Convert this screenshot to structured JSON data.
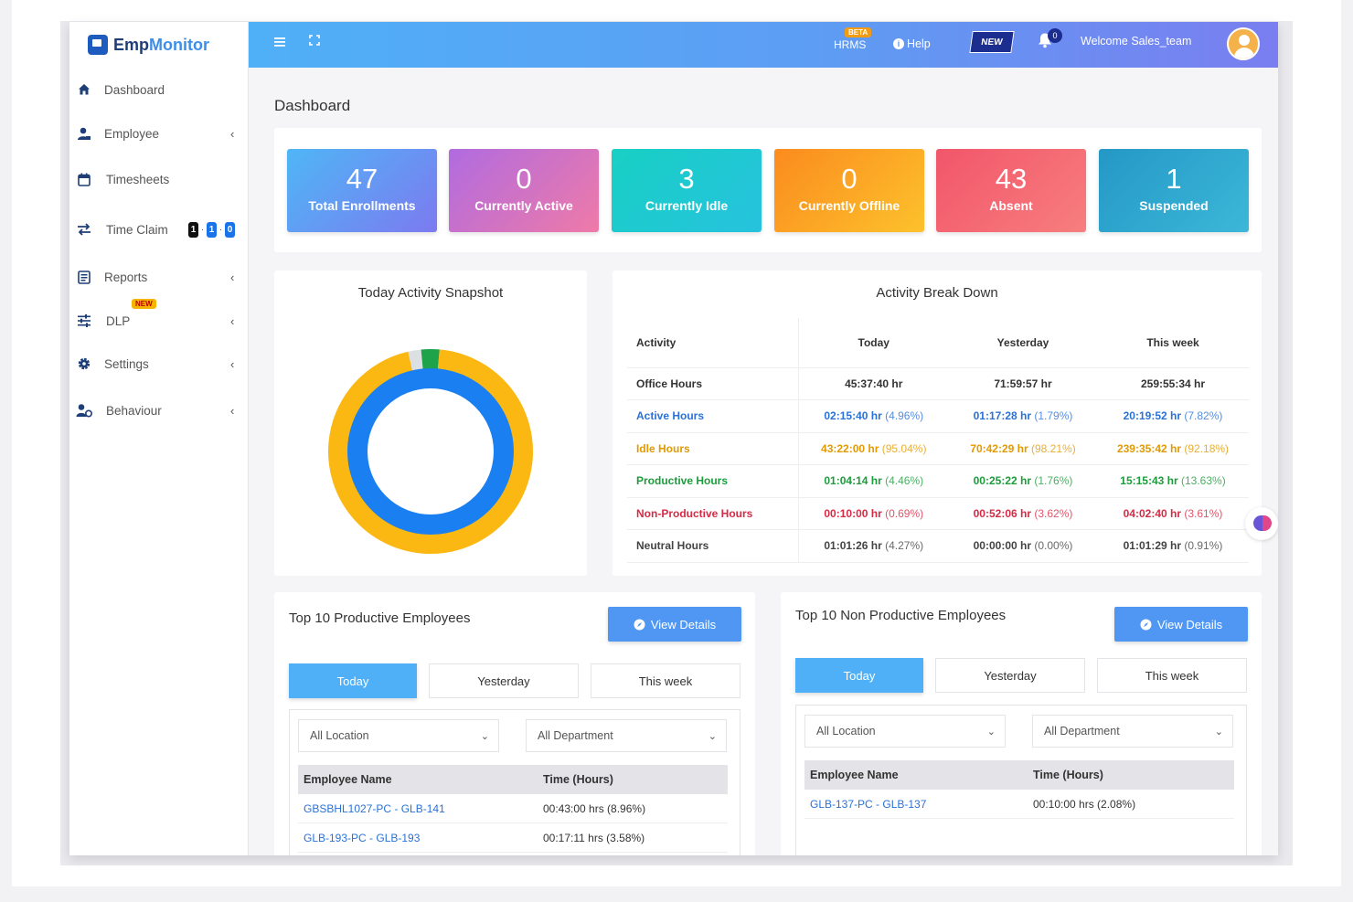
{
  "brand": {
    "name_a": "Emp",
    "name_b": "Monitor"
  },
  "sidebar": {
    "items": [
      {
        "label": "Dashboard",
        "icon": "home-icon",
        "chevron": ""
      },
      {
        "label": "Employee",
        "icon": "user-icon",
        "chevron": "‹"
      },
      {
        "label": "Timesheets",
        "icon": "calendar-icon",
        "chevron": ""
      },
      {
        "label": "Time Claim",
        "icon": "swap-icon",
        "chevron": ""
      },
      {
        "label": "Reports",
        "icon": "report-icon",
        "chevron": "‹"
      },
      {
        "label": "DLP",
        "icon": "sliders-icon",
        "chevron": "‹"
      },
      {
        "label": "Settings",
        "icon": "gear-icon",
        "chevron": "‹"
      },
      {
        "label": "Behaviour",
        "icon": "users-icon",
        "chevron": "‹"
      }
    ],
    "dlp_new_tag": "NEW",
    "time_claim_badges": [
      "1",
      "1",
      "0"
    ]
  },
  "topbar": {
    "hrms": "HRMS",
    "beta": "BETA",
    "help": "Help",
    "new": "NEW",
    "notification_count": "0",
    "welcome": "Welcome Sales_team"
  },
  "page": {
    "title": "Dashboard"
  },
  "stats": [
    {
      "value": "47",
      "label": "Total Enrollments",
      "colors": [
        "#4fb6f6",
        "#7c7af0"
      ]
    },
    {
      "value": "0",
      "label": "Currently Active",
      "colors": [
        "#b06be0",
        "#ef7aa8"
      ]
    },
    {
      "value": "3",
      "label": "Currently Idle",
      "colors": [
        "#18d0c4",
        "#26c2de"
      ]
    },
    {
      "value": "0",
      "label": "Currently Offline",
      "colors": [
        "#fb8b1e",
        "#fcc22c"
      ]
    },
    {
      "value": "43",
      "label": "Absent",
      "colors": [
        "#f2566a",
        "#f77e7e"
      ]
    },
    {
      "value": "1",
      "label": "Suspended",
      "colors": [
        "#2498c6",
        "#3cb7d8"
      ]
    }
  ],
  "snapshot": {
    "title": "Today Activity Snapshot",
    "outer_segments": [
      {
        "name": "Idle",
        "value": 95.04,
        "color": "#fbb813"
      },
      {
        "name": "Gap",
        "value": 2.05,
        "color": "#dde0e3"
      },
      {
        "name": "Productive",
        "value": 2.91,
        "color": "#1fa34a"
      }
    ],
    "inner_segments": [
      {
        "name": "Active",
        "value": 100,
        "color": "#1a7ff0"
      }
    ]
  },
  "breakdown": {
    "title": "Activity Break Down",
    "headers": [
      "Activity",
      "Today",
      "Yesterday",
      "This week"
    ],
    "rows": [
      {
        "activity": "Office Hours",
        "color": "#333333",
        "cells": [
          [
            "45:37:40 hr",
            ""
          ],
          [
            "71:59:57 hr",
            ""
          ],
          [
            "259:55:34 hr",
            ""
          ]
        ]
      },
      {
        "activity": "Active Hours",
        "color": "#2a72d6",
        "cells": [
          [
            "02:15:40 hr",
            "(4.96%)"
          ],
          [
            "01:17:28 hr",
            "(1.79%)"
          ],
          [
            "20:19:52 hr",
            "(7.82%)"
          ]
        ]
      },
      {
        "activity": "Idle Hours",
        "color": "#e39a00",
        "cells": [
          [
            "43:22:00 hr",
            "(95.04%)"
          ],
          [
            "70:42:29 hr",
            "(98.21%)"
          ],
          [
            "239:35:42 hr",
            "(92.18%)"
          ]
        ]
      },
      {
        "activity": "Productive Hours",
        "color": "#1d9c3c",
        "cells": [
          [
            "01:04:14 hr",
            "(4.46%)"
          ],
          [
            "00:25:22 hr",
            "(1.76%)"
          ],
          [
            "15:15:43 hr",
            "(13.63%)"
          ]
        ]
      },
      {
        "activity": "Non-Productive Hours",
        "color": "#d62b45",
        "cells": [
          [
            "00:10:00 hr",
            "(0.69%)"
          ],
          [
            "00:52:06 hr",
            "(3.62%)"
          ],
          [
            "04:02:40 hr",
            "(3.61%)"
          ]
        ]
      },
      {
        "activity": "Neutral Hours",
        "color": "#444444",
        "cells": [
          [
            "01:01:26 hr",
            "(4.27%)"
          ],
          [
            "00:00:00 hr",
            "(0.00%)"
          ],
          [
            "01:01:29 hr",
            "(0.91%)"
          ]
        ]
      }
    ]
  },
  "productive": {
    "title": "Top 10 Productive Employees",
    "view_details": "View Details",
    "tabs": [
      "Today",
      "Yesterday",
      "This week"
    ],
    "location": "All Location",
    "department": "All Department",
    "headers": [
      "Employee Name",
      "Time (Hours)"
    ],
    "rows": [
      {
        "name": "GBSBHL1027-PC - GLB-141",
        "time": "00:43:00 hrs (8.96%)"
      },
      {
        "name": "GLB-193-PC - GLB-193",
        "time": "00:17:11 hrs (3.58%)"
      }
    ]
  },
  "nonproductive": {
    "title": "Top 10 Non Productive Employees",
    "view_details": "View Details",
    "tabs": [
      "Today",
      "Yesterday",
      "This week"
    ],
    "location": "All Location",
    "department": "All Department",
    "headers": [
      "Employee Name",
      "Time (Hours)"
    ],
    "rows": [
      {
        "name": "GLB-137-PC - GLB-137",
        "time": "00:10:00 hrs (2.08%)"
      }
    ]
  }
}
